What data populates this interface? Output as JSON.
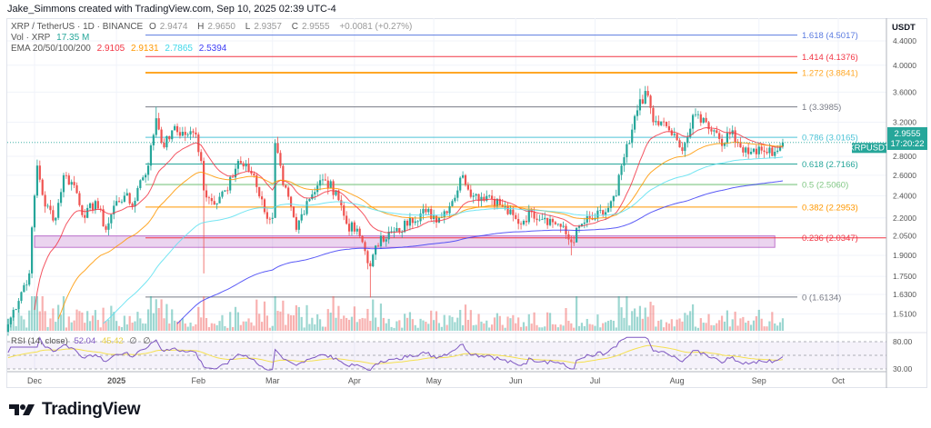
{
  "credit": "Jake_Simmons created with TradingView.com, Sep 10, 2025 02:39 UTC-4",
  "legend": {
    "symbol": "XRP / TetherUS · 1D · BINANCE",
    "o_label": "O",
    "o": "2.9474",
    "h_label": "H",
    "h": "2.9650",
    "l_label": "L",
    "l": "2.9357",
    "c_label": "C",
    "c": "2.9555",
    "change": "+0.0081 (+0.27%)",
    "vol_label": "Vol · XRP",
    "vol": "17.35 M",
    "ema_label": "EMA 20/50/100/200",
    "ema20": "2.9105",
    "ema50": "2.9131",
    "ema100": "2.7865",
    "ema200": "2.5394",
    "rsi_label": "RSI (14, close)",
    "rsi": "52.04",
    "rsi_ma": "45.42",
    "na1": "∅",
    "na2": "∅"
  },
  "colors": {
    "up": "#26a69a",
    "down": "#ef5350",
    "ema20": "#f23645",
    "ema50": "#ff9800",
    "ema100": "#5ce1f0",
    "ema200": "#3d3df5",
    "rsi": "#7e57c2",
    "rsi_ma": "#f5e050",
    "accent": "#26a69a"
  },
  "price_axis": {
    "unit": "USDT",
    "ticks": [
      "4.4000",
      "4.0000",
      "3.6000",
      "3.2000",
      "2.8000",
      "2.6000",
      "2.4000",
      "2.2000",
      "2.0500",
      "1.9000",
      "1.7500",
      "1.6300",
      "1.5100"
    ]
  },
  "rsi_axis": {
    "ticks": [
      "80.00",
      "30.00"
    ]
  },
  "time_axis": {
    "ticks": [
      "Dec",
      "2025",
      "Feb",
      "Mar",
      "Apr",
      "May",
      "Jun",
      "Jul",
      "Aug",
      "Sep",
      "Oct"
    ]
  },
  "price_tag": {
    "symbol": "XRPUSDT",
    "price": "2.9555",
    "countdown": "17:20:22"
  },
  "logo": "TradingView",
  "chart_data": {
    "type": "candlestick",
    "symbol": "XRPUSDT",
    "interval": "1D",
    "y_scale": "log",
    "ylim": [
      1.45,
      4.6
    ],
    "x_range": [
      "2024-11-20",
      "2025-10-10"
    ],
    "grid": true,
    "fib_levels": [
      {
        "label": "1.618 (4.5017)",
        "ratio": 1.618,
        "price": 4.5017,
        "color": "#5b7be0"
      },
      {
        "label": "1.414 (4.1376)",
        "ratio": 1.414,
        "price": 4.1376,
        "color": "#f23645"
      },
      {
        "label": "1.272 (3.8841)",
        "ratio": 1.272,
        "price": 3.8841,
        "color": "#ffa726"
      },
      {
        "label": "1 (3.3985)",
        "ratio": 1,
        "price": 3.3985,
        "color": "#787b86"
      },
      {
        "label": "0.786 (3.0165)",
        "ratio": 0.786,
        "price": 3.0165,
        "color": "#4dc3d6"
      },
      {
        "label": "0.618 (2.7166)",
        "ratio": 0.618,
        "price": 2.7166,
        "color": "#26a69a"
      },
      {
        "label": "0.5 (2.5060)",
        "ratio": 0.5,
        "price": 2.506,
        "color": "#81c784"
      },
      {
        "label": "0.382 (2.2953)",
        "ratio": 0.382,
        "price": 2.2953,
        "color": "#ff9800"
      },
      {
        "label": "0.236 (2.0347)",
        "ratio": 0.236,
        "price": 2.0347,
        "color": "#f23645"
      },
      {
        "label": "0 (1.6134)",
        "ratio": 0,
        "price": 1.6134,
        "color": "#787b86"
      }
    ],
    "support_zone": {
      "from": "2024-12-01",
      "to": "2025-09-07",
      "low": 1.96,
      "high": 2.05,
      "color": "#9c27b0"
    },
    "close_path": [
      [
        "2024-11-21",
        1.45
      ],
      [
        "2024-11-29",
        1.77
      ],
      [
        "2024-12-02",
        2.7
      ],
      [
        "2024-12-05",
        2.3
      ],
      [
        "2024-12-09",
        2.2
      ],
      [
        "2024-12-12",
        2.6
      ],
      [
        "2024-12-16",
        2.5
      ],
      [
        "2024-12-20",
        2.2
      ],
      [
        "2024-12-24",
        2.35
      ],
      [
        "2024-12-28",
        2.1
      ],
      [
        "2025-01-01",
        2.35
      ],
      [
        "2025-01-04",
        2.4
      ],
      [
        "2025-01-07",
        2.3
      ],
      [
        "2025-01-10",
        2.55
      ],
      [
        "2025-01-13",
        2.7
      ],
      [
        "2025-01-16",
        3.25
      ],
      [
        "2025-01-19",
        2.9
      ],
      [
        "2025-01-22",
        3.1
      ],
      [
        "2025-01-28",
        3.05
      ],
      [
        "2025-01-31",
        3.05
      ],
      [
        "2025-02-02",
        2.75
      ],
      [
        "2025-02-03",
        2.45
      ],
      [
        "2025-02-06",
        2.35
      ],
      [
        "2025-02-12",
        2.45
      ],
      [
        "2025-02-16",
        2.75
      ],
      [
        "2025-02-22",
        2.6
      ],
      [
        "2025-02-26",
        2.25
      ],
      [
        "2025-03-01",
        2.2
      ],
      [
        "2025-03-02",
        2.95
      ],
      [
        "2025-03-05",
        2.5
      ],
      [
        "2025-03-10",
        2.1
      ],
      [
        "2025-03-14",
        2.35
      ],
      [
        "2025-03-19",
        2.55
      ],
      [
        "2025-03-25",
        2.45
      ],
      [
        "2025-03-29",
        2.15
      ],
      [
        "2025-04-03",
        2.05
      ],
      [
        "2025-04-07",
        1.82
      ],
      [
        "2025-04-11",
        2.05
      ],
      [
        "2025-04-18",
        2.08
      ],
      [
        "2025-04-22",
        2.2
      ],
      [
        "2025-04-28",
        2.25
      ],
      [
        "2025-05-03",
        2.2
      ],
      [
        "2025-05-08",
        2.35
      ],
      [
        "2025-05-12",
        2.6
      ],
      [
        "2025-05-16",
        2.4
      ],
      [
        "2025-05-22",
        2.4
      ],
      [
        "2025-05-27",
        2.3
      ],
      [
        "2025-06-02",
        2.15
      ],
      [
        "2025-06-07",
        2.25
      ],
      [
        "2025-06-12",
        2.2
      ],
      [
        "2025-06-17",
        2.15
      ],
      [
        "2025-06-22",
        2.0
      ],
      [
        "2025-06-26",
        2.15
      ],
      [
        "2025-07-01",
        2.2
      ],
      [
        "2025-07-05",
        2.25
      ],
      [
        "2025-07-09",
        2.4
      ],
      [
        "2025-07-11",
        2.7
      ],
      [
        "2025-07-14",
        2.95
      ],
      [
        "2025-07-18",
        3.5
      ],
      [
        "2025-07-21",
        3.55
      ],
      [
        "2025-07-23",
        3.2
      ],
      [
        "2025-07-28",
        3.15
      ],
      [
        "2025-08-02",
        2.9
      ],
      [
        "2025-08-04",
        2.95
      ],
      [
        "2025-08-08",
        3.3
      ],
      [
        "2025-08-12",
        3.2
      ],
      [
        "2025-08-15",
        3.1
      ],
      [
        "2025-08-19",
        2.95
      ],
      [
        "2025-08-22",
        3.1
      ],
      [
        "2025-08-25",
        2.9
      ],
      [
        "2025-08-29",
        2.85
      ],
      [
        "2025-09-03",
        2.85
      ],
      [
        "2025-09-07",
        2.85
      ],
      [
        "2025-09-10",
        2.9555
      ]
    ],
    "notable_wicks": [
      [
        "2025-02-03",
        1.77
      ],
      [
        "2025-04-07",
        1.61
      ],
      [
        "2025-06-22",
        1.9
      ],
      [
        "2025-07-18",
        3.65
      ],
      [
        "2025-01-16",
        3.4
      ]
    ],
    "indicators": [
      "EMA 20",
      "EMA 50",
      "EMA 100",
      "EMA 200",
      "Volume",
      "RSI (14, close)"
    ]
  }
}
